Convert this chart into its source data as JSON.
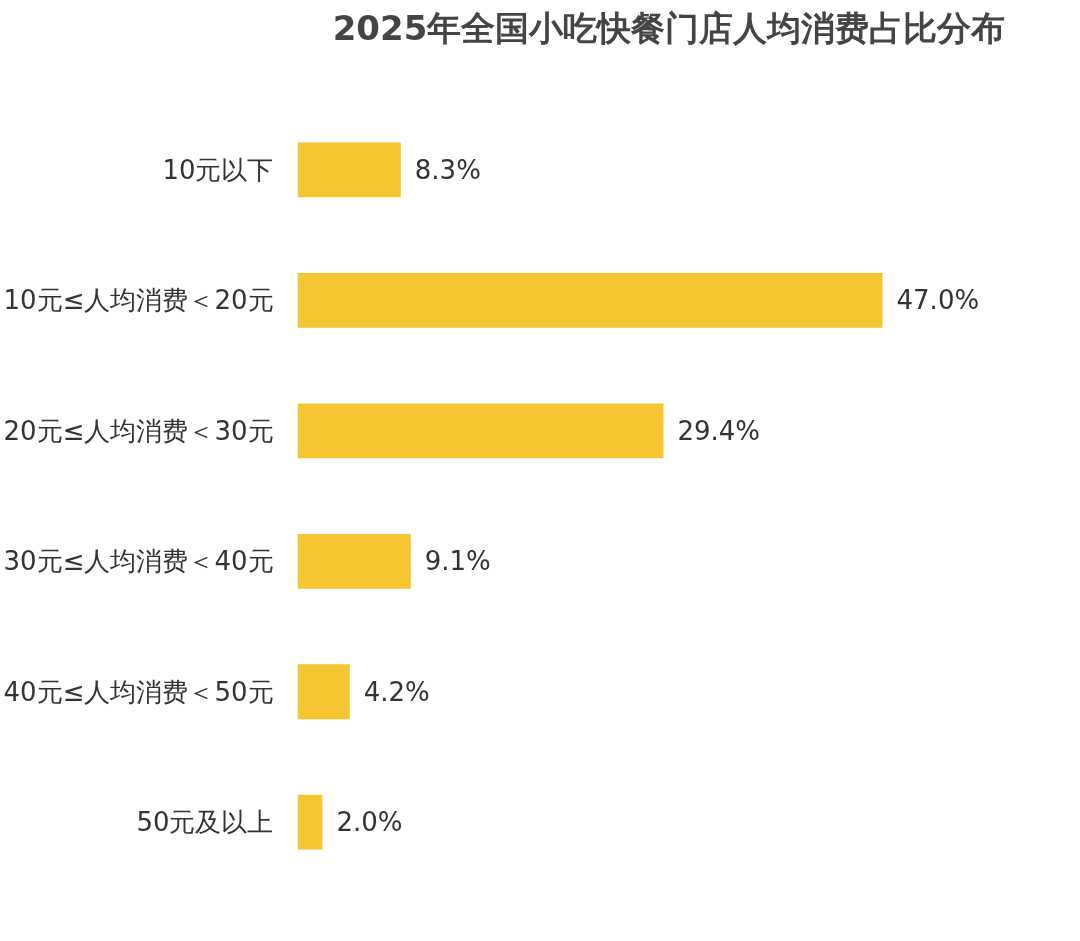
{
  "chart_data": {
    "type": "bar",
    "orientation": "horizontal",
    "title": "2025年全国小吃快餐门店人均消费占比分布",
    "categories": [
      "10元以下",
      "10元≤人均消费＜20元",
      "20元≤人均消费＜30元",
      "30元≤人均消费＜40元",
      "40元≤人均消费＜50元",
      "50元及以上"
    ],
    "values": [
      8.3,
      47.0,
      29.4,
      9.1,
      4.2,
      2.0
    ],
    "value_labels": [
      "8.3%",
      "47.0%",
      "29.4%",
      "9.1%",
      "4.2%",
      "2.0%"
    ],
    "color": "#f7c531",
    "grid": false
  }
}
